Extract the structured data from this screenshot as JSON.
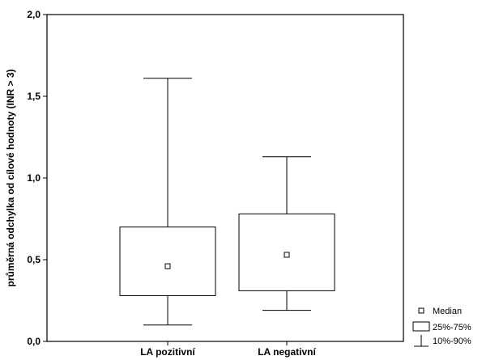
{
  "chart_data": {
    "type": "box",
    "title": "",
    "ylabel": "průměrná odchylka od cílové hodnoty (INR > 3)",
    "xlabel": "",
    "ylim": [
      0.0,
      2.0
    ],
    "y_ticks": [
      "0,0",
      "0,5",
      "1,0",
      "1,5",
      "2,0"
    ],
    "y_tick_values": [
      0.0,
      0.5,
      1.0,
      1.5,
      2.0
    ],
    "categories": [
      "LA pozitivní",
      "LA negativní"
    ],
    "boxes": [
      {
        "category": "LA pozitivní",
        "p10": 0.1,
        "p25": 0.28,
        "median": 0.46,
        "p75": 0.7,
        "p90": 1.61
      },
      {
        "category": "LA negativní",
        "p10": 0.19,
        "p25": 0.31,
        "median": 0.53,
        "p75": 0.78,
        "p90": 1.13
      }
    ],
    "legend": {
      "position": "bottom-right",
      "items": [
        {
          "symbol": "median-marker",
          "label": "Median"
        },
        {
          "symbol": "box",
          "label": "25%-75%"
        },
        {
          "symbol": "whisker",
          "label": "10%-90%"
        }
      ]
    },
    "colors": {
      "stroke": "#000000",
      "fill": "#ffffff"
    }
  }
}
